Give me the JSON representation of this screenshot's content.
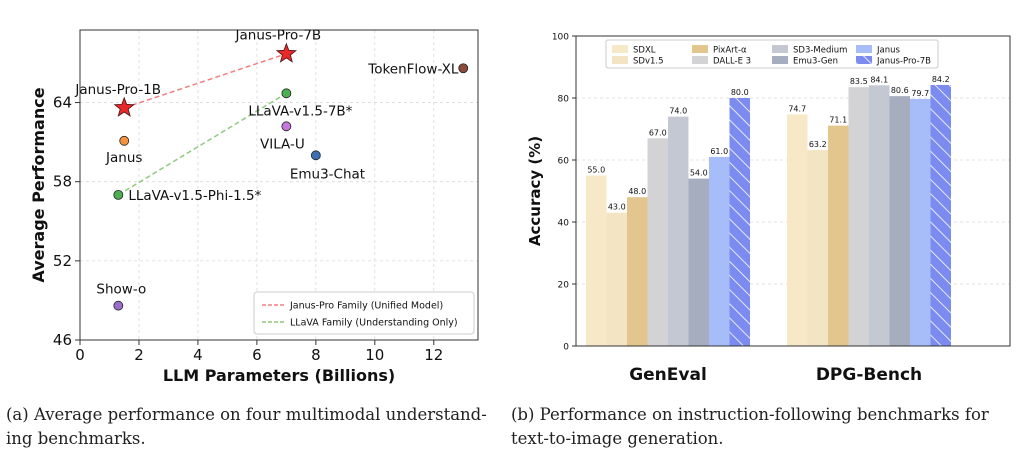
{
  "colors": {
    "janus_pro_family": "#f08080",
    "llava_family": "#90c97e",
    "janus_pro_marker": "#e8292a",
    "llava_marker": "#4caf50",
    "janus_marker": "#f5923e",
    "vila_marker": "#c678dd",
    "emu3_chat_marker": "#3d6fb5",
    "tokenflow_marker": "#8b4a3a",
    "showo_marker": "#9c6ec9"
  },
  "chart_data": [
    {
      "type": "scatter",
      "xlabel": "LLM Parameters (Billions)",
      "ylabel": "Average Performance",
      "xlim": [
        0,
        13.5
      ],
      "ylim": [
        46,
        69.5
      ],
      "xticks": [
        0,
        2,
        4,
        6,
        8,
        10,
        12
      ],
      "yticks": [
        46,
        52,
        58,
        64
      ],
      "grid": true,
      "legend_position": "bottom-right",
      "points": [
        {
          "label": "Janus-Pro-1B",
          "x": 1.5,
          "y": 63.6,
          "marker": "star",
          "color": "#e8292a"
        },
        {
          "label": "Janus-Pro-7B",
          "x": 7.0,
          "y": 67.7,
          "marker": "star",
          "color": "#e8292a"
        },
        {
          "label": "Janus",
          "x": 1.5,
          "y": 61.1,
          "marker": "circle",
          "color": "#f5923e"
        },
        {
          "label": "LLaVA-v1.5-7B*",
          "x": 7.0,
          "y": 64.7,
          "marker": "circle",
          "color": "#4caf50"
        },
        {
          "label": "LLaVA-v1.5-Phi-1.5*",
          "x": 1.3,
          "y": 57.0,
          "marker": "circle",
          "color": "#4caf50"
        },
        {
          "label": "VILA-U",
          "x": 7.0,
          "y": 62.2,
          "marker": "circle",
          "color": "#c678dd"
        },
        {
          "label": "Emu3-Chat",
          "x": 8.0,
          "y": 60.0,
          "marker": "circle",
          "color": "#3d6fb5"
        },
        {
          "label": "TokenFlow-XL",
          "x": 13.0,
          "y": 66.6,
          "marker": "circle",
          "color": "#8b4a3a"
        },
        {
          "label": "Show-o",
          "x": 1.3,
          "y": 48.6,
          "marker": "circle",
          "color": "#9c6ec9"
        }
      ],
      "lines": [
        {
          "name": "Janus-Pro Family (Unified Model)",
          "from": [
            1.5,
            63.6
          ],
          "to": [
            7.0,
            67.7
          ],
          "color": "#f08080"
        },
        {
          "name": "LLaVA Family (Understanding Only)",
          "from": [
            1.3,
            57.0
          ],
          "to": [
            7.0,
            64.7
          ],
          "color": "#90c97e"
        }
      ]
    },
    {
      "type": "bar",
      "ylabel": "Accuracy (%)",
      "ylim": [
        0,
        100
      ],
      "yticks": [
        0,
        20,
        40,
        60,
        80,
        100
      ],
      "grid": true,
      "legend_position": "top",
      "categories": [
        "GenEval",
        "DPG-Bench"
      ],
      "series": [
        {
          "name": "SDXL",
          "values": [
            55.0,
            74.7
          ],
          "color": "#f7e8c8",
          "hatch": false
        },
        {
          "name": "SDv1.5",
          "values": [
            43.0,
            63.2
          ],
          "color": "#f3e4c4",
          "hatch": false
        },
        {
          "name": "PixArt-α",
          "values": [
            48.0,
            71.1
          ],
          "color": "#e3c58e",
          "hatch": false
        },
        {
          "name": "DALL-E 3",
          "values": [
            67.0,
            83.5
          ],
          "color": "#d3d3d6",
          "hatch": false
        },
        {
          "name": "SD3-Medium",
          "values": [
            74.0,
            84.1
          ],
          "color": "#c3c8d2",
          "hatch": false
        },
        {
          "name": "Emu3-Gen",
          "values": [
            54.0,
            80.6
          ],
          "color": "#a6adbf",
          "hatch": false
        },
        {
          "name": "Janus",
          "values": [
            61.0,
            79.7
          ],
          "color": "#a7bdfa",
          "hatch": false
        },
        {
          "name": "Janus-Pro-7B",
          "values": [
            80.0,
            84.2
          ],
          "color": "#7b8bf0",
          "hatch": true
        }
      ],
      "value_labels": {
        "GenEval": [
          "55.0",
          "43.0",
          "48.0",
          "67.0",
          "74.0",
          "54.0",
          "61.0",
          "80.0"
        ],
        "DPG-Bench": [
          "74.7",
          "63.2",
          "71.1",
          "83.5",
          "84.1",
          "80.6",
          "79.7",
          "84.2"
        ]
      }
    }
  ],
  "captions": {
    "a_line1": "(a)  Average performance on four multimodal understand-",
    "a_line2": "ing benchmarks.",
    "b_line1": "(b)  Performance on instruction-following benchmarks for",
    "b_line2": "text-to-image generation."
  }
}
